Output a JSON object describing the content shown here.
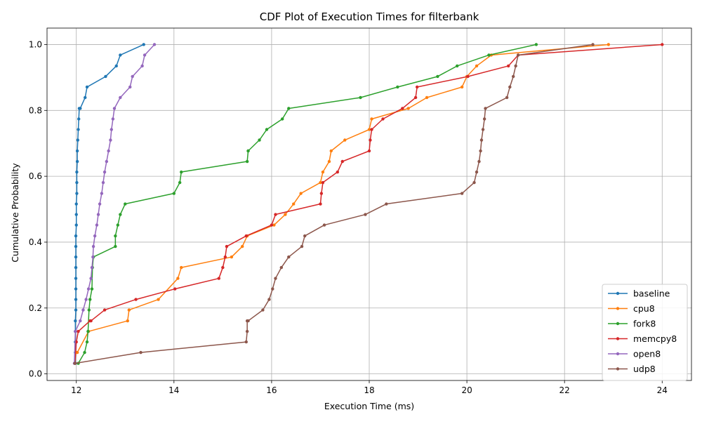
{
  "chart_data": {
    "type": "line",
    "title": "CDF Plot of Execution Times for filterbank",
    "xlabel": "Execution Time (ms)",
    "ylabel": "Cumulative Probability",
    "xlim": [
      11.4,
      24.6
    ],
    "ylim": [
      -0.02,
      1.05
    ],
    "x_ticks": [
      12,
      14,
      16,
      18,
      20,
      22,
      24
    ],
    "y_ticks": [
      0.0,
      0.2,
      0.4,
      0.6,
      0.8,
      1.0
    ],
    "grid": true,
    "legend_position": "lower-right",
    "series": [
      {
        "name": "baseline",
        "color": "#1f77b4",
        "x": [
          11.98,
          11.98,
          11.98,
          11.98,
          11.98,
          11.99,
          11.99,
          11.99,
          11.99,
          11.99,
          11.99,
          11.99,
          11.99,
          12.0,
          12.0,
          12.0,
          12.01,
          12.01,
          12.01,
          12.02,
          12.02,
          12.03,
          12.04,
          12.05,
          12.06,
          12.08,
          12.18,
          12.22,
          12.6,
          12.82,
          12.9,
          13.38
        ],
        "y": [
          0.032,
          0.065,
          0.097,
          0.129,
          0.161,
          0.194,
          0.226,
          0.258,
          0.29,
          0.323,
          0.355,
          0.387,
          0.419,
          0.452,
          0.484,
          0.516,
          0.548,
          0.581,
          0.613,
          0.645,
          0.677,
          0.71,
          0.742,
          0.774,
          0.806,
          0.806,
          0.839,
          0.871,
          0.903,
          0.935,
          0.968,
          1.0
        ]
      },
      {
        "name": "cpu8",
        "color": "#ff7f0e",
        "x": [
          11.97,
          11.99,
          12.02,
          12.25,
          13.05,
          13.08,
          13.68,
          14.08,
          14.15,
          15.18,
          15.4,
          15.5,
          16.05,
          16.28,
          16.45,
          16.6,
          17.0,
          17.05,
          17.18,
          17.22,
          17.5,
          18.0,
          18.05,
          18.8,
          19.18,
          19.9,
          20.0,
          20.2,
          20.5,
          22.9
        ],
        "y": [
          0.032,
          0.065,
          0.065,
          0.129,
          0.161,
          0.194,
          0.226,
          0.29,
          0.323,
          0.355,
          0.387,
          0.419,
          0.452,
          0.484,
          0.516,
          0.548,
          0.581,
          0.613,
          0.645,
          0.677,
          0.71,
          0.742,
          0.774,
          0.806,
          0.839,
          0.871,
          0.903,
          0.935,
          0.968,
          1.0
        ]
      },
      {
        "name": "fork8",
        "color": "#2ca02c",
        "x": [
          12.04,
          12.17,
          12.22,
          12.24,
          12.26,
          12.28,
          12.32,
          12.33,
          12.35,
          12.8,
          12.8,
          12.85,
          12.9,
          13.0,
          14.0,
          14.12,
          14.15,
          15.5,
          15.52,
          15.52,
          15.75,
          15.9,
          16.22,
          16.35,
          17.82,
          18.58,
          19.4,
          19.8,
          20.45,
          21.42
        ],
        "y": [
          0.032,
          0.065,
          0.097,
          0.129,
          0.194,
          0.226,
          0.258,
          0.323,
          0.355,
          0.387,
          0.419,
          0.452,
          0.484,
          0.516,
          0.548,
          0.581,
          0.613,
          0.645,
          0.677,
          0.677,
          0.71,
          0.742,
          0.774,
          0.806,
          0.839,
          0.871,
          0.903,
          0.935,
          0.968,
          1.0
        ]
      },
      {
        "name": "memcpy8",
        "color": "#d62728",
        "x": [
          11.97,
          12.0,
          12.04,
          12.28,
          12.3,
          12.58,
          13.22,
          14.02,
          14.92,
          15.0,
          15.05,
          15.08,
          15.48,
          16.0,
          16.08,
          17.0,
          17.02,
          17.05,
          17.35,
          17.45,
          18.0,
          18.02,
          18.05,
          18.28,
          18.68,
          18.95,
          18.98,
          20.02,
          20.85,
          21.05,
          24.0
        ],
        "y": [
          0.032,
          0.097,
          0.129,
          0.161,
          0.161,
          0.194,
          0.226,
          0.258,
          0.29,
          0.323,
          0.355,
          0.387,
          0.419,
          0.452,
          0.484,
          0.516,
          0.548,
          0.581,
          0.613,
          0.645,
          0.677,
          0.71,
          0.742,
          0.774,
          0.806,
          0.839,
          0.871,
          0.903,
          0.935,
          0.968,
          1.0
        ]
      },
      {
        "name": "open8",
        "color": "#9467bd",
        "x": [
          11.96,
          11.98,
          12.08,
          12.14,
          12.2,
          12.25,
          12.3,
          12.32,
          12.34,
          12.35,
          12.38,
          12.42,
          12.45,
          12.48,
          12.52,
          12.55,
          12.58,
          12.62,
          12.66,
          12.7,
          12.72,
          12.75,
          12.78,
          12.9,
          13.1,
          13.15,
          13.35,
          13.4,
          13.6
        ],
        "y": [
          0.032,
          0.129,
          0.161,
          0.194,
          0.226,
          0.258,
          0.29,
          0.323,
          0.355,
          0.387,
          0.419,
          0.452,
          0.484,
          0.516,
          0.548,
          0.581,
          0.613,
          0.645,
          0.677,
          0.71,
          0.742,
          0.774,
          0.806,
          0.839,
          0.871,
          0.903,
          0.935,
          0.968,
          1.0
        ]
      },
      {
        "name": "udp8",
        "color": "#8c564b",
        "x": [
          11.97,
          13.32,
          15.48,
          15.5,
          15.5,
          15.52,
          15.82,
          15.95,
          16.02,
          16.08,
          16.2,
          16.35,
          16.62,
          16.68,
          17.08,
          17.92,
          18.35,
          19.9,
          20.15,
          20.2,
          20.25,
          20.28,
          20.3,
          20.33,
          20.36,
          20.38,
          20.82,
          20.88,
          20.95,
          21.0,
          21.05,
          22.58
        ],
        "y": [
          0.032,
          0.065,
          0.097,
          0.129,
          0.161,
          0.161,
          0.194,
          0.226,
          0.258,
          0.29,
          0.323,
          0.355,
          0.387,
          0.419,
          0.452,
          0.484,
          0.516,
          0.548,
          0.581,
          0.613,
          0.645,
          0.677,
          0.71,
          0.742,
          0.774,
          0.806,
          0.839,
          0.871,
          0.903,
          0.935,
          0.968,
          1.0
        ]
      }
    ]
  }
}
